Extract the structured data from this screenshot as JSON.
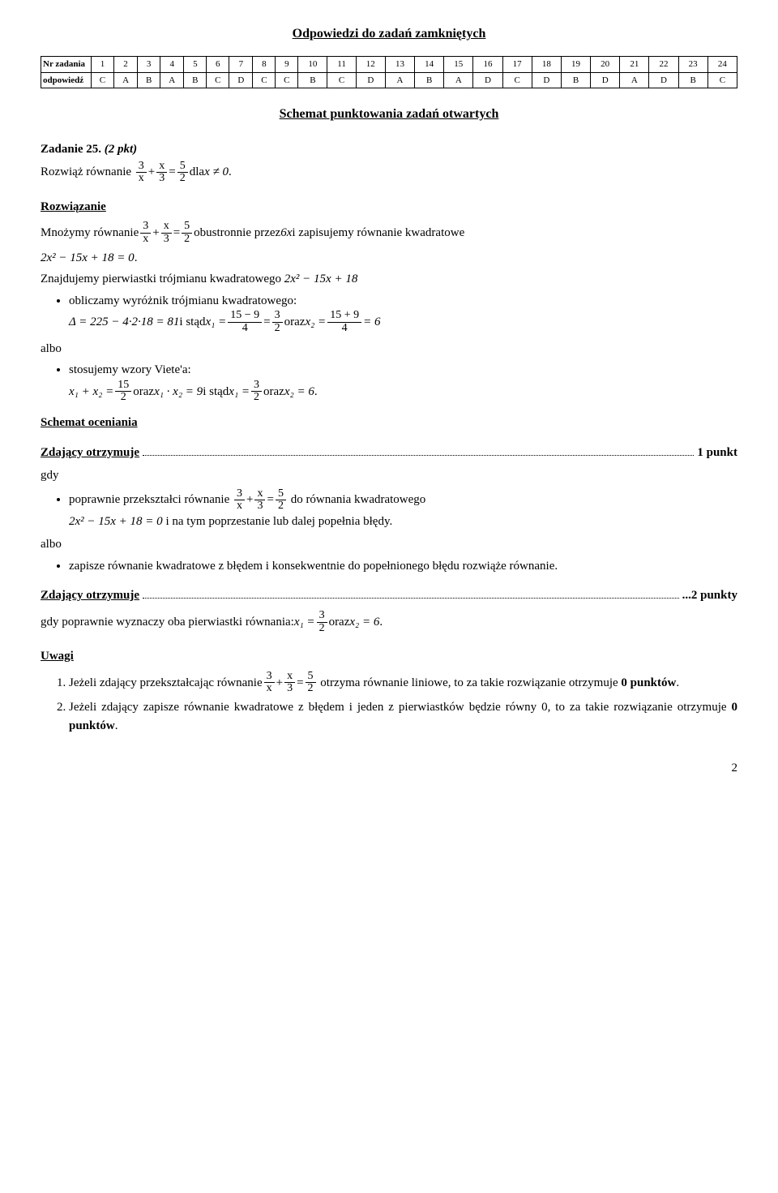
{
  "title_closed": "Odpowiedzi do zadań zamkniętych",
  "table": {
    "header_label": "Nr zadania",
    "answer_label": "odpowiedź",
    "numbers": [
      "1",
      "2",
      "3",
      "4",
      "5",
      "6",
      "7",
      "8",
      "9",
      "10",
      "11",
      "12",
      "13",
      "14",
      "15",
      "16",
      "17",
      "18",
      "19",
      "20",
      "21",
      "22",
      "23",
      "24"
    ],
    "answers": [
      "C",
      "A",
      "B",
      "A",
      "B",
      "C",
      "D",
      "C",
      "C",
      "B",
      "C",
      "D",
      "A",
      "B",
      "A",
      "D",
      "C",
      "D",
      "B",
      "D",
      "A",
      "D",
      "B",
      "C"
    ]
  },
  "title_open": "Schemat punktowania zadań otwartych",
  "task25": {
    "heading_left": "Zadanie 25.",
    "heading_italic": "(2 pkt)",
    "rozw_label": "Rozwiąż równanie",
    "frac1_num": "3",
    "frac1_den": "x",
    "frac2_num": "x",
    "frac2_den": "3",
    "frac3_num": "5",
    "frac3_den": "2",
    "dla": " dla ",
    "x_ne0": "x ≠ 0",
    "dot": "."
  },
  "rozw_heading": "Rozwiązanie",
  "mnozymy": {
    "pre": "Mnożymy równanie ",
    "post1": " obustronnie przez ",
    "six_x": "6x",
    "post2": " i zapisujemy równanie kwadratowe"
  },
  "quad_eq": "2x² − 15x + 18 = 0",
  "znajdujemy": "Znajdujemy pierwiastki trójmianu kwadratowego ",
  "trojmian": "2x² − 15x + 18",
  "bullets1": {
    "b1_text": "obliczamy wyróżnik trójmianu kwadratowego:",
    "delta_eq": "Δ = 225 − 4·2·18 = 81",
    "i_stad": " i stąd ",
    "x1_eq_l": "x₁ =",
    "fr159n": "15 − 9",
    "fr159d": "4",
    "eq32n": "3",
    "eq32d": "2",
    "oraz": " oraz ",
    "x2_eq_l": "x₂ =",
    "fr159pn": "15 + 9",
    "fr159pd": "4",
    "eq6": "= 6"
  },
  "albo": "albo",
  "bullets2": {
    "b2_text": "stosujemy wzory Viete'a:",
    "x1x2sum_l": "x₁ + x₂ =",
    "fr152n": "15",
    "fr152d": "2",
    "oraz1": " oraz ",
    "x1x2prod": "x₁ · x₂ = 9",
    "i_stad2": " i stąd ",
    "x1_l": "x₁ =",
    "fr32n": "3",
    "fr32d": "2",
    "oraz2": " oraz ",
    "x2_6": "x₂ = 6",
    "dot": "."
  },
  "schemat_oceny": "Schemat oceniania",
  "zd1_label": "Zdający otrzymuje",
  "zd1_tail": "1 punkt",
  "gdy": "gdy",
  "bul_pop": {
    "pre": "poprawnie przekształci równanie ",
    "mid": " do równania kwadratowego",
    "quad2": "2x² − 15x + 18 = 0",
    "post": " i na tym poprzestanie lub dalej popełnia błędy."
  },
  "bul_zap": "zapisze równanie kwadratowe z błędem i konsekwentnie do popełnionego błędu rozwiąże równanie.",
  "zd2_label": "Zdający otrzymuje",
  "zd2_tail": "...2 punkty",
  "gdy2_pre": "gdy poprawnie wyznaczy oba pierwiastki równania: ",
  "gdy2_x1": "x₁ =",
  "gdy2_fr_n": "3",
  "gdy2_fr_d": "2",
  "gdy2_oraz": " oraz ",
  "gdy2_x2": "x₂ = 6",
  "gdy2_dot": ".",
  "uwagi": "Uwagi",
  "uw1_pre": "Jeżeli zdający przekształcając równanie ",
  "uw1_post": " otrzyma równanie liniowe, to za takie rozwiązanie otrzymuje ",
  "zero_pkt": "0 punktów",
  "uw1_dot": ".",
  "uw2": "Jeżeli zdający zapisze równanie kwadratowe z błędem i jeden z pierwiastków będzie równy 0, to za takie rozwiązanie otrzymuje ",
  "uw2_dot": ".",
  "page_num": "2"
}
